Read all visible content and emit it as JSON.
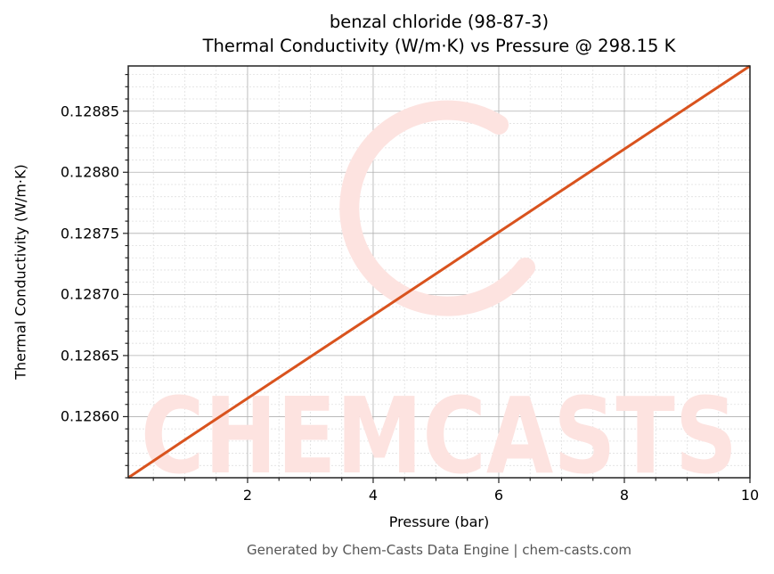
{
  "title": {
    "line1": "benzal chloride (98-87-3)",
    "line2": "Thermal Conductivity (W/m·K) vs Pressure @ 298.15 K"
  },
  "axes": {
    "xlabel": "Pressure (bar)",
    "ylabel": "Thermal Conductivity (W/m·K)",
    "xticks": [
      "2",
      "4",
      "6",
      "8",
      "10"
    ],
    "yticks": [
      "0.12860",
      "0.12865",
      "0.12870",
      "0.12875",
      "0.12880",
      "0.12885"
    ]
  },
  "watermark": "CHEMCASTS",
  "footer": "Generated by Chem-Casts Data Engine | chem-casts.com",
  "colors": {
    "line": "#d9531e",
    "watermark": "#fde3e0",
    "grid_major": "#b0b0b0",
    "grid_minor": "#e0e0e0",
    "footer": "#555555"
  },
  "chart_data": {
    "type": "line",
    "title": "benzal chloride (98-87-3) Thermal Conductivity (W/m·K) vs Pressure @ 298.15 K",
    "xlabel": "Pressure (bar)",
    "ylabel": "Thermal Conductivity (W/m·K)",
    "xlim": [
      0.1,
      10
    ],
    "ylim": [
      0.12855,
      0.128887
    ],
    "grid": true,
    "series": [
      {
        "name": "Thermal Conductivity",
        "x": [
          0.1,
          1,
          2,
          3,
          4,
          5,
          6,
          7,
          8,
          9,
          10
        ],
        "y": [
          0.12855,
          0.128581,
          0.128615,
          0.128649,
          0.128683,
          0.128717,
          0.128751,
          0.128785,
          0.128819,
          0.128853,
          0.128887
        ]
      }
    ]
  }
}
